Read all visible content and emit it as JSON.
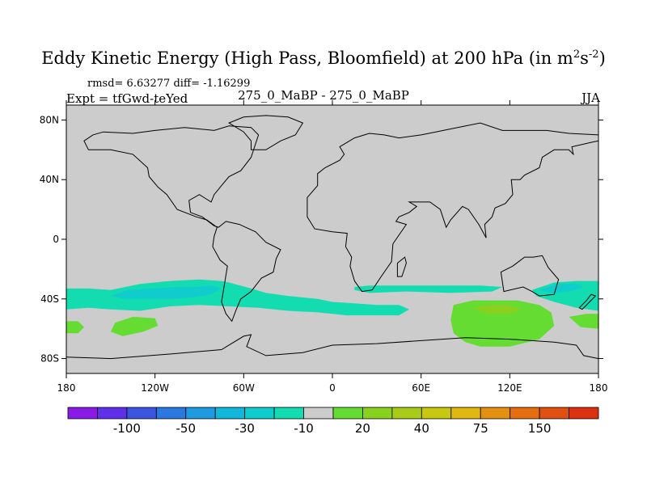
{
  "chart_data": {
    "type": "heatmap",
    "title": "Eddy Kinetic Energy (High Pass, Bloomfield) at 200 hPa (in m",
    "title_units_sup1": "2",
    "title_units_s": "s",
    "title_units_sup2": "-2",
    "title_units_close": ")",
    "stats": "rmsd= 6.63277 diff= -1.16299",
    "expt": "Expt = tfGwd-teYed",
    "center_label": "275_0_MaBP - 275_0_MaBP",
    "season": "JJA",
    "xlim": [
      -180,
      180
    ],
    "ylim": [
      -90,
      90
    ],
    "lat_ticks": [
      {
        "value": 80,
        "label": "80N"
      },
      {
        "value": 40,
        "label": "40N"
      },
      {
        "value": 0,
        "label": "0"
      },
      {
        "value": -40,
        "label": "40S"
      },
      {
        "value": -80,
        "label": "80S"
      }
    ],
    "lon_ticks": [
      {
        "value": -180,
        "label": "180"
      },
      {
        "value": -120,
        "label": "120W"
      },
      {
        "value": -60,
        "label": "60W"
      },
      {
        "value": 0,
        "label": "0"
      },
      {
        "value": 60,
        "label": "60E"
      },
      {
        "value": 120,
        "label": "120E"
      },
      {
        "value": 180,
        "label": "180"
      }
    ],
    "colorbar": {
      "colors": [
        "#8a1ae6",
        "#6030e8",
        "#3c55e0",
        "#2a78e0",
        "#1e9ae0",
        "#12b8dc",
        "#10cccc",
        "#12dcb0",
        "#cccccc",
        "#64dc32",
        "#8ad01e",
        "#a8cc18",
        "#c8c810",
        "#e0b810",
        "#e49010",
        "#e46e10",
        "#e05010",
        "#dc3012"
      ],
      "labels": [
        {
          "edge": 2,
          "text": "-100"
        },
        {
          "edge": 4,
          "text": "-50"
        },
        {
          "edge": 6,
          "text": "-30"
        },
        {
          "edge": 8,
          "text": "-10"
        },
        {
          "edge": 10,
          "text": "20"
        },
        {
          "edge": 12,
          "text": "40"
        },
        {
          "edge": 14,
          "text": "75"
        },
        {
          "edge": 16,
          "text": "150"
        }
      ]
    },
    "regions": [
      {
        "name": "southern-pacific-band",
        "color": "#12dcb0",
        "lonlat": [
          [
            -180,
            -33
          ],
          [
            -165,
            -33
          ],
          [
            -150,
            -34
          ],
          [
            -130,
            -30
          ],
          [
            -110,
            -28
          ],
          [
            -90,
            -27
          ],
          [
            -75,
            -28
          ],
          [
            -70,
            -29
          ],
          [
            -55,
            -33
          ],
          [
            -45,
            -36
          ],
          [
            -30,
            -38
          ],
          [
            -10,
            -40
          ],
          [
            0,
            -42
          ],
          [
            15,
            -43
          ],
          [
            30,
            -44
          ],
          [
            45,
            -44
          ],
          [
            52,
            -47
          ],
          [
            45,
            -51
          ],
          [
            30,
            -51
          ],
          [
            10,
            -51
          ],
          [
            -10,
            -49
          ],
          [
            -30,
            -48
          ],
          [
            -50,
            -46
          ],
          [
            -70,
            -45
          ],
          [
            -90,
            -44
          ],
          [
            -110,
            -45
          ],
          [
            -130,
            -48
          ],
          [
            -150,
            -47
          ],
          [
            -165,
            -46
          ],
          [
            -180,
            -47
          ]
        ]
      },
      {
        "name": "southern-pacific-core",
        "color": "#10cccc",
        "lonlat": [
          [
            -150,
            -38
          ],
          [
            -138,
            -34
          ],
          [
            -120,
            -33
          ],
          [
            -105,
            -32
          ],
          [
            -93,
            -32
          ],
          [
            -82,
            -31
          ],
          [
            -75,
            -33
          ],
          [
            -82,
            -37
          ],
          [
            -95,
            -39
          ],
          [
            -110,
            -40
          ],
          [
            -125,
            -40
          ],
          [
            -140,
            -40
          ]
        ]
      },
      {
        "name": "indian-ocean-streak",
        "color": "#12dcb0",
        "lonlat": [
          [
            15,
            -32
          ],
          [
            25,
            -31
          ],
          [
            40,
            -31
          ],
          [
            60,
            -31
          ],
          [
            80,
            -31
          ],
          [
            100,
            -31
          ],
          [
            115,
            -32
          ],
          [
            108,
            -35
          ],
          [
            80,
            -36
          ],
          [
            50,
            -35
          ],
          [
            25,
            -36
          ],
          [
            15,
            -34
          ]
        ]
      },
      {
        "name": "east-pacific-patch",
        "color": "#12dcb0",
        "lonlat": [
          [
            135,
            -34
          ],
          [
            150,
            -29
          ],
          [
            165,
            -28
          ],
          [
            180,
            -28
          ],
          [
            180,
            -48
          ],
          [
            165,
            -46
          ],
          [
            150,
            -42
          ],
          [
            138,
            -38
          ]
        ]
      },
      {
        "name": "east-pacific-core",
        "color": "#10cccc",
        "lonlat": [
          [
            140,
            -34
          ],
          [
            152,
            -30
          ],
          [
            165,
            -30
          ],
          [
            170,
            -32
          ],
          [
            160,
            -35
          ],
          [
            148,
            -36
          ]
        ]
      },
      {
        "name": "indian-ocean-green",
        "color": "#64dc32",
        "lonlat": [
          [
            82,
            -44
          ],
          [
            95,
            -41
          ],
          [
            110,
            -41
          ],
          [
            125,
            -41
          ],
          [
            140,
            -44
          ],
          [
            148,
            -49
          ],
          [
            150,
            -58
          ],
          [
            140,
            -67
          ],
          [
            120,
            -72
          ],
          [
            100,
            -72
          ],
          [
            90,
            -69
          ],
          [
            82,
            -63
          ],
          [
            80,
            -54
          ]
        ]
      },
      {
        "name": "indian-ocean-yellowgreen",
        "color": "#8ad01e",
        "lonlat": [
          [
            95,
            -46
          ],
          [
            105,
            -44
          ],
          [
            120,
            -44
          ],
          [
            128,
            -47
          ],
          [
            120,
            -50
          ],
          [
            105,
            -50
          ]
        ]
      },
      {
        "name": "south-pacific-green",
        "color": "#64dc32",
        "lonlat": [
          [
            -147,
            -56
          ],
          [
            -135,
            -52
          ],
          [
            -120,
            -53
          ],
          [
            -118,
            -58
          ],
          [
            -128,
            -62
          ],
          [
            -142,
            -65
          ],
          [
            -150,
            -62
          ]
        ]
      },
      {
        "name": "west-edge-green",
        "color": "#64dc32",
        "lonlat": [
          [
            -180,
            -55
          ],
          [
            -172,
            -55
          ],
          [
            -168,
            -59
          ],
          [
            -172,
            -63
          ],
          [
            -180,
            -63
          ]
        ]
      },
      {
        "name": "east-edge-green",
        "color": "#64dc32",
        "lonlat": [
          [
            160,
            -52
          ],
          [
            172,
            -50
          ],
          [
            180,
            -50
          ],
          [
            180,
            -60
          ],
          [
            168,
            -59
          ]
        ]
      }
    ],
    "coastlines": [
      {
        "name": "americas",
        "lonlat": [
          [
            -168,
            66
          ],
          [
            -162,
            70
          ],
          [
            -155,
            72
          ],
          [
            -135,
            71
          ],
          [
            -120,
            73
          ],
          [
            -100,
            75
          ],
          [
            -80,
            73
          ],
          [
            -70,
            76
          ],
          [
            -55,
            75
          ],
          [
            -50,
            70
          ],
          [
            -55,
            55
          ],
          [
            -62,
            46
          ],
          [
            -70,
            42
          ],
          [
            -75,
            36
          ],
          [
            -80,
            30
          ],
          [
            -82,
            25
          ],
          [
            -90,
            30
          ],
          [
            -97,
            26
          ],
          [
            -96,
            18
          ],
          [
            -88,
            15
          ],
          [
            -80,
            9
          ],
          [
            -77,
            8
          ],
          [
            -72,
            12
          ],
          [
            -63,
            10
          ],
          [
            -52,
            5
          ],
          [
            -45,
            -2
          ],
          [
            -35,
            -7
          ],
          [
            -38,
            -13
          ],
          [
            -40,
            -22
          ],
          [
            -48,
            -26
          ],
          [
            -55,
            -35
          ],
          [
            -62,
            -40
          ],
          [
            -65,
            -47
          ],
          [
            -68,
            -55
          ],
          [
            -72,
            -50
          ],
          [
            -75,
            -42
          ],
          [
            -73,
            -30
          ],
          [
            -71,
            -18
          ],
          [
            -76,
            -14
          ],
          [
            -81,
            -5
          ],
          [
            -80,
            2
          ],
          [
            -78,
            8
          ],
          [
            -85,
            13
          ],
          [
            -92,
            15
          ],
          [
            -105,
            20
          ],
          [
            -112,
            30
          ],
          [
            -118,
            35
          ],
          [
            -124,
            42
          ],
          [
            -125,
            48
          ],
          [
            -135,
            57
          ],
          [
            -150,
            60
          ],
          [
            -165,
            60
          ],
          [
            -168,
            66
          ]
        ]
      },
      {
        "name": "greenland",
        "lonlat": [
          [
            -55,
            60
          ],
          [
            -45,
            60
          ],
          [
            -35,
            66
          ],
          [
            -25,
            70
          ],
          [
            -20,
            78
          ],
          [
            -30,
            82
          ],
          [
            -45,
            83
          ],
          [
            -60,
            82
          ],
          [
            -70,
            78
          ],
          [
            -60,
            72
          ],
          [
            -55,
            66
          ],
          [
            -55,
            60
          ]
        ]
      },
      {
        "name": "eurasia-africa",
        "lonlat": [
          [
            -10,
            36
          ],
          [
            -17,
            28
          ],
          [
            -17,
            15
          ],
          [
            -12,
            7
          ],
          [
            0,
            5
          ],
          [
            10,
            4
          ],
          [
            9,
            -5
          ],
          [
            13,
            -12
          ],
          [
            12,
            -18
          ],
          [
            15,
            -28
          ],
          [
            20,
            -35
          ],
          [
            27,
            -34
          ],
          [
            33,
            -25
          ],
          [
            40,
            -15
          ],
          [
            41,
            -3
          ],
          [
            50,
            10
          ],
          [
            43,
            12
          ],
          [
            45,
            15
          ],
          [
            52,
            18
          ],
          [
            57,
            22
          ],
          [
            52,
            25
          ],
          [
            60,
            25
          ],
          [
            66,
            25
          ],
          [
            73,
            20
          ],
          [
            77,
            8
          ],
          [
            80,
            13
          ],
          [
            88,
            22
          ],
          [
            92,
            20
          ],
          [
            99,
            10
          ],
          [
            104,
            1
          ],
          [
            103,
            10
          ],
          [
            108,
            15
          ],
          [
            110,
            21
          ],
          [
            117,
            24
          ],
          [
            122,
            30
          ],
          [
            121,
            40
          ],
          [
            127,
            40
          ],
          [
            130,
            43
          ],
          [
            140,
            48
          ],
          [
            142,
            55
          ],
          [
            150,
            60
          ],
          [
            160,
            60
          ],
          [
            163,
            57
          ],
          [
            162,
            62
          ],
          [
            175,
            65
          ],
          [
            180,
            66
          ],
          [
            180,
            70
          ],
          [
            160,
            71
          ],
          [
            145,
            73
          ],
          [
            130,
            73
          ],
          [
            115,
            73
          ],
          [
            100,
            78
          ],
          [
            80,
            74
          ],
          [
            70,
            72
          ],
          [
            60,
            70
          ],
          [
            45,
            68
          ],
          [
            35,
            70
          ],
          [
            25,
            71
          ],
          [
            15,
            68
          ],
          [
            5,
            62
          ],
          [
            8,
            57
          ],
          [
            5,
            53
          ],
          [
            -5,
            48
          ],
          [
            -10,
            44
          ],
          [
            -10,
            36
          ]
        ]
      },
      {
        "name": "madagascar",
        "lonlat": [
          [
            44,
            -25
          ],
          [
            47,
            -25
          ],
          [
            50,
            -16
          ],
          [
            49,
            -12
          ],
          [
            44,
            -16
          ],
          [
            44,
            -25
          ]
        ]
      },
      {
        "name": "australia",
        "lonlat": [
          [
            114,
            -22
          ],
          [
            122,
            -18
          ],
          [
            130,
            -12
          ],
          [
            136,
            -12
          ],
          [
            142,
            -11
          ],
          [
            146,
            -19
          ],
          [
            153,
            -27
          ],
          [
            150,
            -37
          ],
          [
            140,
            -38
          ],
          [
            135,
            -35
          ],
          [
            129,
            -32
          ],
          [
            116,
            -35
          ],
          [
            114,
            -22
          ]
        ]
      },
      {
        "name": "new-zealand",
        "lonlat": [
          [
            167,
            -46
          ],
          [
            172,
            -41
          ],
          [
            175,
            -37
          ],
          [
            178,
            -38
          ],
          [
            174,
            -42
          ],
          [
            169,
            -47
          ],
          [
            167,
            -46
          ]
        ]
      },
      {
        "name": "antarctica",
        "lonlat": [
          [
            -180,
            -79
          ],
          [
            -150,
            -80
          ],
          [
            -110,
            -77
          ],
          [
            -75,
            -74
          ],
          [
            -60,
            -65
          ],
          [
            -55,
            -64
          ],
          [
            -58,
            -72
          ],
          [
            -45,
            -78
          ],
          [
            -20,
            -76
          ],
          [
            0,
            -71
          ],
          [
            30,
            -70
          ],
          [
            60,
            -68
          ],
          [
            90,
            -66
          ],
          [
            120,
            -67
          ],
          [
            150,
            -69
          ],
          [
            165,
            -71
          ],
          [
            170,
            -78
          ],
          [
            180,
            -80
          ]
        ]
      }
    ]
  }
}
